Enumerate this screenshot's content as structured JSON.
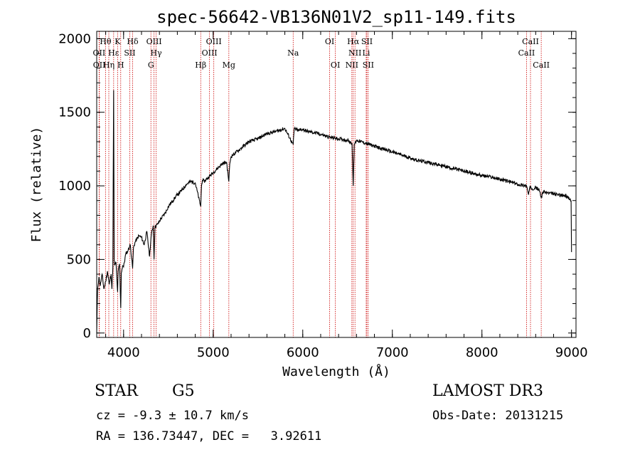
{
  "chart_data": {
    "type": "line",
    "title": "spec-56642-VB136N01V2_sp11-149.fits",
    "xlabel": "Wavelength (Å)",
    "ylabel": "Flux (relative)",
    "xlim": [
      3700,
      9050
    ],
    "ylim": [
      -30,
      2050
    ],
    "xticks": [
      4000,
      5000,
      6000,
      7000,
      8000,
      9000
    ],
    "yticks": [
      0,
      500,
      1000,
      1500,
      2000
    ],
    "xtick_labels": [
      "4000",
      "5000",
      "6000",
      "7000",
      "8000",
      "9000"
    ],
    "ytick_labels": [
      "0",
      "500",
      "1000",
      "1500",
      "2000"
    ],
    "x_minor_step": 200,
    "y_minor_step": 100,
    "series": [
      {
        "name": "spectrum",
        "x": [
          3700,
          3710,
          3725,
          3740,
          3760,
          3780,
          3800,
          3820,
          3840,
          3860,
          3870,
          3880,
          3889,
          3895,
          3900,
          3915,
          3933,
          3940,
          3955,
          3968,
          3975,
          3990,
          4000,
          4025,
          4050,
          4075,
          4101,
          4110,
          4130,
          4150,
          4170,
          4200,
          4230,
          4260,
          4290,
          4310,
          4330,
          4340,
          4350,
          4380,
          4420,
          4460,
          4500,
          4550,
          4600,
          4650,
          4700,
          4750,
          4800,
          4861,
          4870,
          4880,
          4900,
          4950,
          5000,
          5050,
          5100,
          5150,
          5175,
          5185,
          5200,
          5300,
          5400,
          5500,
          5600,
          5700,
          5800,
          5893,
          5905,
          5950,
          6000,
          6050,
          6100,
          6200,
          6300,
          6400,
          6500,
          6550,
          6563,
          6575,
          6600,
          6650,
          6700,
          6800,
          6900,
          7000,
          7100,
          7200,
          7300,
          7400,
          7500,
          7600,
          7700,
          7800,
          7900,
          8000,
          8100,
          8200,
          8300,
          8400,
          8498,
          8520,
          8542,
          8560,
          8600,
          8640,
          8662,
          8680,
          8750,
          8850,
          8950,
          8995,
          9000
        ],
        "y": [
          0,
          300,
          380,
          320,
          400,
          300,
          350,
          420,
          330,
          400,
          300,
          450,
          1650,
          500,
          460,
          480,
          280,
          420,
          470,
          170,
          410,
          460,
          450,
          540,
          560,
          600,
          440,
          580,
          620,
          640,
          660,
          650,
          600,
          690,
          520,
          670,
          730,
          500,
          720,
          740,
          780,
          810,
          860,
          900,
          940,
          970,
          1010,
          1030,
          1020,
          860,
          1000,
          1040,
          1030,
          1060,
          1090,
          1120,
          1150,
          1160,
          1030,
          1150,
          1200,
          1250,
          1300,
          1320,
          1355,
          1370,
          1390,
          1280,
          1390,
          1375,
          1385,
          1370,
          1365,
          1350,
          1330,
          1320,
          1310,
          1290,
          1000,
          1280,
          1310,
          1300,
          1290,
          1270,
          1250,
          1230,
          1210,
          1190,
          1170,
          1160,
          1145,
          1130,
          1115,
          1100,
          1085,
          1070,
          1060,
          1045,
          1030,
          1010,
          1000,
          940,
          1000,
          980,
          990,
          970,
          920,
          960,
          950,
          940,
          930,
          900,
          550
        ]
      }
    ],
    "lines": [
      {
        "name": "OII",
        "wave": 3727,
        "row": 2
      },
      {
        "name": "OII",
        "wave": 3729,
        "row": 3
      },
      {
        "name": "Hθ",
        "wave": 3798,
        "row": 1
      },
      {
        "name": "Hη",
        "wave": 3835,
        "row": 3
      },
      {
        "name": "Hε",
        "wave": 3889,
        "row": 2
      },
      {
        "name": "K",
        "wave": 3933,
        "row": 1
      },
      {
        "name": "H",
        "wave": 3968,
        "row": 3
      },
      {
        "name": "SII",
        "wave": 4069,
        "row": 2
      },
      {
        "name": "Hδ",
        "wave": 4101,
        "row": 1
      },
      {
        "name": "G",
        "wave": 4305,
        "row": 3
      },
      {
        "name": "OIII",
        "wave": 4340,
        "row": 1
      },
      {
        "name": "Hγ",
        "wave": 4363,
        "row": 2
      },
      {
        "name": "Hβ",
        "wave": 4861,
        "row": 3
      },
      {
        "name": "OIII",
        "wave": 4959,
        "row": 2
      },
      {
        "name": "OIII",
        "wave": 5007,
        "row": 1
      },
      {
        "name": "Mg",
        "wave": 5175,
        "row": 3
      },
      {
        "name": "Na",
        "wave": 5893,
        "row": 2
      },
      {
        "name": "OI",
        "wave": 6300,
        "row": 1
      },
      {
        "name": "OI",
        "wave": 6364,
        "row": 3
      },
      {
        "name": "NII",
        "wave": 6548,
        "row": 3
      },
      {
        "name": "Hα",
        "wave": 6563,
        "row": 1
      },
      {
        "name": "NII",
        "wave": 6583,
        "row": 2
      },
      {
        "name": "Li",
        "wave": 6708,
        "row": 2
      },
      {
        "name": "SII",
        "wave": 6716,
        "row": 1
      },
      {
        "name": "SII",
        "wave": 6731,
        "row": 3
      },
      {
        "name": "CaII",
        "wave": 8498,
        "row": 2
      },
      {
        "name": "CaII",
        "wave": 8542,
        "row": 1
      },
      {
        "name": "CaII",
        "wave": 8662,
        "row": 3
      }
    ]
  },
  "info": {
    "object_class": "STAR",
    "subclass": "G5",
    "survey": "LAMOST DR3",
    "redshift_text": "cz = -9.3 ± 10.7 km/s",
    "obs_date_text": "Obs-Date: 20131215",
    "coords_text": "RA = 136.73447, DEC =   3.92611"
  },
  "colors": {
    "spectrum": "#000000",
    "line_marker": "#cc0000",
    "axes": "#000000"
  }
}
